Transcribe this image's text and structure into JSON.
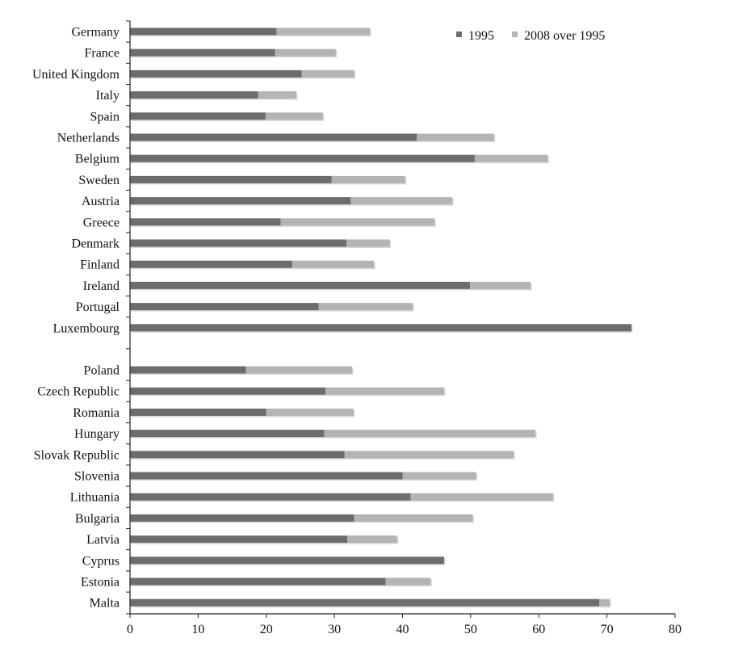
{
  "chart_data": {
    "type": "bar",
    "orientation": "horizontal",
    "stacked": true,
    "title": "",
    "xlabel": "",
    "ylabel": "",
    "xlim": [
      0,
      80
    ],
    "x_ticks": [
      0,
      10,
      20,
      30,
      40,
      50,
      60,
      70,
      80
    ],
    "grid": false,
    "legend_position": "top-right",
    "categories": [
      "Germany",
      "France",
      "United Kingdom",
      "Italy",
      "Spain",
      "Netherlands",
      "Belgium",
      "Sweden",
      "Austria",
      "Greece",
      "Denmark",
      "Finland",
      "Ireland",
      "Portugal",
      "Luxembourg",
      "Poland",
      "Czech Republic",
      "Romania",
      "Hungary",
      "Slovak Republic",
      "Slovenia",
      "Lithuania",
      "Bulgaria",
      "Latvia",
      "Cyprus",
      "Estonia",
      "Malta"
    ],
    "groups": [
      {
        "start": 0,
        "count": 15
      },
      {
        "start": 15,
        "count": 12
      }
    ],
    "series": [
      {
        "name": "1995",
        "color": "#6d6d6d",
        "values": [
          21.5,
          21.3,
          25.2,
          18.8,
          19.9,
          42.1,
          50.6,
          29.6,
          32.4,
          22.1,
          31.8,
          23.8,
          49.9,
          27.7,
          73.6,
          17.0,
          28.7,
          20.0,
          28.5,
          31.5,
          40.0,
          41.2,
          32.9,
          31.9,
          46.1,
          37.5,
          68.9
        ]
      },
      {
        "name": "2008 over 1995",
        "color": "#b4b4b4",
        "values": [
          13.7,
          8.9,
          7.7,
          5.6,
          8.4,
          11.3,
          10.7,
          10.8,
          14.9,
          22.6,
          6.3,
          12.0,
          8.9,
          13.8,
          0.0,
          15.6,
          17.4,
          12.8,
          31.0,
          24.8,
          10.8,
          20.9,
          17.4,
          7.3,
          0.0,
          6.6,
          1.5
        ]
      }
    ]
  }
}
